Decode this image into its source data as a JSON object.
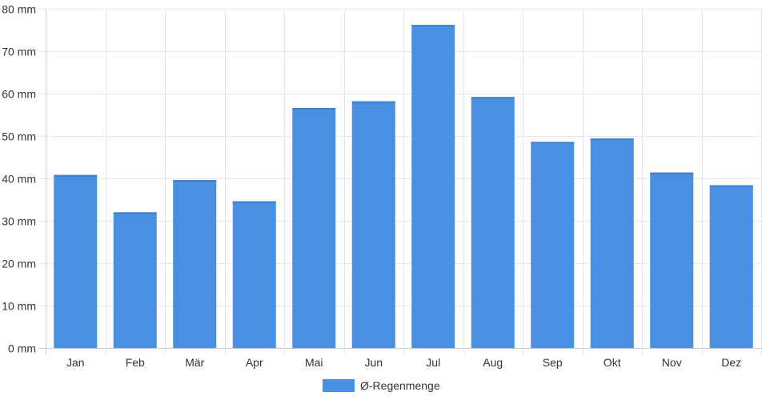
{
  "chart_data": {
    "type": "bar",
    "categories": [
      "Jan",
      "Feb",
      "Mär",
      "Apr",
      "Mai",
      "Jun",
      "Jul",
      "Aug",
      "Sep",
      "Okt",
      "Nov",
      "Dez"
    ],
    "series": [
      {
        "name": "Ø-Regenmenge",
        "values": [
          40.8,
          32.0,
          39.6,
          34.6,
          56.6,
          58.2,
          76.2,
          59.2,
          48.6,
          49.4,
          41.4,
          38.4
        ],
        "color": "#4a90e2"
      }
    ],
    "unit": "mm",
    "ylim": [
      0,
      80
    ],
    "yticks": [
      0,
      10,
      20,
      30,
      40,
      50,
      60,
      70,
      80
    ],
    "ytick_labels": [
      "0 mm",
      "10 mm",
      "20 mm",
      "30 mm",
      "40 mm",
      "50 mm",
      "60 mm",
      "70 mm",
      "80 mm"
    ],
    "grid": true,
    "legend_position": "bottom-center"
  }
}
